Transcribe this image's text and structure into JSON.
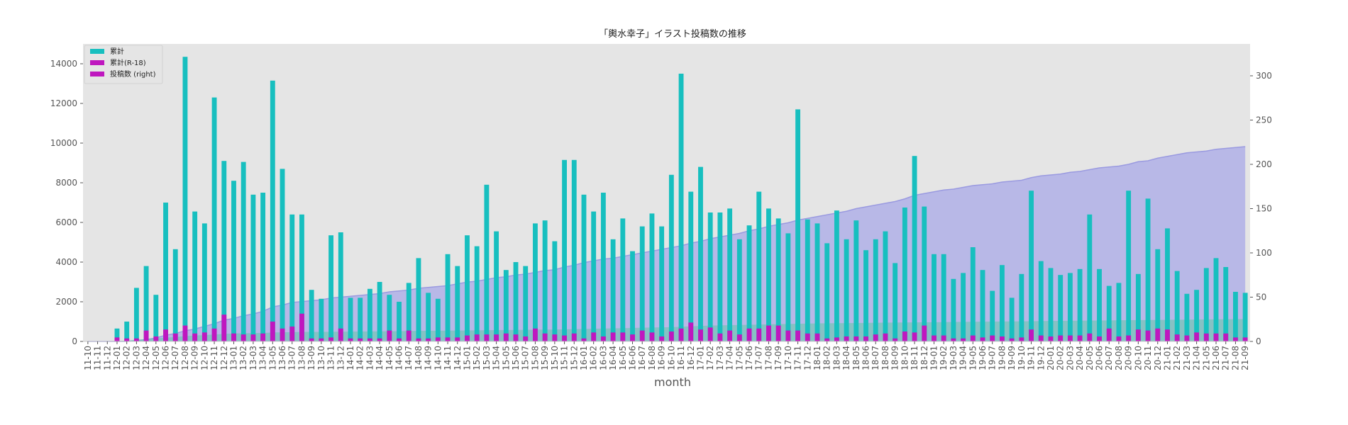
{
  "chart_data": {
    "type": "bar",
    "title": "「輿水幸子」イラスト投稿数の推移",
    "xlabel": "month",
    "ylabel": "",
    "categories": [
      "11-10",
      "11-11",
      "11-12",
      "12-01",
      "12-02",
      "12-03",
      "12-04",
      "12-05",
      "12-06",
      "12-07",
      "12-08",
      "12-09",
      "12-10",
      "12-11",
      "12-12",
      "13-01",
      "13-02",
      "13-03",
      "13-04",
      "13-05",
      "13-06",
      "13-07",
      "13-08",
      "13-09",
      "13-10",
      "13-11",
      "13-12",
      "14-01",
      "14-02",
      "14-03",
      "14-04",
      "14-05",
      "14-06",
      "14-07",
      "14-08",
      "14-09",
      "14-10",
      "14-11",
      "14-12",
      "15-01",
      "15-02",
      "15-03",
      "15-04",
      "15-05",
      "15-06",
      "15-07",
      "15-08",
      "15-09",
      "15-10",
      "15-11",
      "15-12",
      "16-01",
      "16-02",
      "16-03",
      "16-04",
      "16-05",
      "16-06",
      "16-07",
      "16-08",
      "16-09",
      "16-10",
      "16-11",
      "16-12",
      "17-01",
      "17-02",
      "17-03",
      "17-04",
      "17-05",
      "17-06",
      "17-07",
      "17-08",
      "17-09",
      "17-10",
      "17-11",
      "17-12",
      "18-01",
      "18-02",
      "18-03",
      "18-04",
      "18-05",
      "18-06",
      "18-07",
      "18-08",
      "18-09",
      "18-10",
      "18-11",
      "18-12",
      "19-01",
      "19-02",
      "19-03",
      "19-04",
      "19-05",
      "19-06",
      "19-07",
      "19-08",
      "19-09",
      "19-10",
      "19-11",
      "19-12",
      "20-01",
      "20-02",
      "20-03",
      "20-04",
      "20-05",
      "20-06",
      "20-07",
      "20-08",
      "20-09",
      "20-10",
      "20-11",
      "20-12",
      "21-01",
      "21-02",
      "21-03",
      "21-04",
      "21-05",
      "21-06",
      "21-07",
      "21-08",
      "21-09"
    ],
    "series": [
      {
        "name": "累計",
        "axis": "left",
        "kind": "bar",
        "color": "#17bfbf",
        "values": [
          0,
          0,
          0,
          650,
          1000,
          2700,
          3800,
          2350,
          7000,
          4650,
          14350,
          6550,
          5950,
          12300,
          9100,
          8100,
          9050,
          7400,
          7500,
          13150,
          8700,
          6400,
          6400,
          2600,
          2150,
          5350,
          5500,
          2200,
          2200,
          2650,
          3000,
          2350,
          2000,
          2950,
          4200,
          2450,
          2150,
          4400,
          3800,
          5350,
          4800,
          7900,
          5550,
          3600,
          4000,
          3800,
          5950,
          6100,
          5050,
          9150,
          9150,
          7400,
          6550,
          7500,
          5150,
          6200,
          4550,
          5800,
          6450,
          5800,
          8400,
          13500,
          7550,
          8800,
          6500,
          6500,
          6700,
          5150,
          5850,
          7550,
          6700,
          6200,
          5450,
          11700,
          6150,
          5950,
          4950,
          6600,
          5150,
          6100,
          4600,
          5150,
          5550,
          3950,
          6750,
          9350,
          6800,
          4400,
          4400,
          3150,
          3450,
          4750,
          3600,
          2550,
          3850,
          2200,
          3400,
          7600,
          4050,
          3700,
          3350,
          3450,
          3650,
          6400,
          3650,
          2800,
          2950,
          7600,
          3400,
          7200,
          4650,
          5700,
          3550,
          2400,
          2600,
          3700,
          4200,
          3750,
          2500,
          2450
        ]
      },
      {
        "name": "累計(R-18)",
        "axis": "left",
        "kind": "bar",
        "color": "#bf17bf",
        "values": [
          0,
          0,
          0,
          200,
          150,
          150,
          550,
          250,
          600,
          400,
          800,
          400,
          450,
          650,
          1350,
          400,
          350,
          350,
          400,
          1000,
          650,
          750,
          1400,
          150,
          150,
          200,
          650,
          150,
          150,
          150,
          150,
          550,
          150,
          550,
          150,
          150,
          200,
          200,
          200,
          300,
          350,
          350,
          350,
          400,
          350,
          250,
          650,
          400,
          350,
          300,
          400,
          150,
          450,
          250,
          450,
          450,
          350,
          550,
          450,
          250,
          500,
          650,
          950,
          600,
          700,
          400,
          550,
          350,
          650,
          650,
          800,
          800,
          550,
          550,
          400,
          400,
          150,
          200,
          250,
          250,
          250,
          350,
          400,
          150,
          500,
          450,
          800,
          300,
          300,
          150,
          150,
          300,
          200,
          300,
          250,
          150,
          200,
          600,
          300,
          250,
          300,
          300,
          300,
          400,
          250,
          650,
          250,
          300,
          600,
          550,
          650,
          600,
          350,
          300,
          450,
          400,
          400,
          400,
          200,
          200
        ]
      },
      {
        "name": "投稿数 (right)",
        "axis": "right",
        "kind": "area",
        "color": "#b0b0e8",
        "values": [
          0,
          0,
          0,
          0,
          0,
          1,
          2,
          4,
          7,
          9,
          12,
          14,
          17,
          20,
          24,
          26,
          29,
          31,
          34,
          39,
          41,
          44,
          45,
          46,
          47,
          49,
          50,
          51,
          52,
          53,
          54,
          56,
          57,
          58,
          60,
          61,
          62,
          63,
          65,
          67,
          68,
          70,
          72,
          73,
          75,
          76,
          78,
          80,
          81,
          84,
          86,
          89,
          91,
          93,
          94,
          96,
          98,
          100,
          102,
          104,
          106,
          108,
          111,
          113,
          116,
          118,
          120,
          122,
          125,
          127,
          130,
          132,
          134,
          137,
          139,
          141,
          143,
          145,
          147,
          150,
          152,
          154,
          156,
          158,
          161,
          165,
          167,
          169,
          171,
          172,
          174,
          176,
          177,
          178,
          180,
          181,
          182,
          185,
          187,
          188,
          189,
          191,
          192,
          194,
          196,
          197,
          198,
          200,
          203,
          204,
          207,
          209,
          211,
          213,
          214,
          215,
          217,
          218,
          219,
          220
        ]
      },
      {
        "name": "",
        "axis": "left",
        "kind": "area",
        "color": "#5fc8a8",
        "values": [
          0,
          0,
          0,
          20,
          40,
          80,
          120,
          150,
          190,
          220,
          270,
          300,
          320,
          350,
          380,
          400,
          410,
          420,
          430,
          450,
          460,
          470,
          480,
          480,
          480,
          485,
          490,
          495,
          500,
          505,
          510,
          515,
          520,
          525,
          530,
          535,
          540,
          545,
          550,
          555,
          560,
          565,
          570,
          575,
          580,
          585,
          590,
          595,
          600,
          610,
          620,
          630,
          640,
          650,
          660,
          670,
          680,
          690,
          700,
          710,
          720,
          740,
          760,
          780,
          800,
          810,
          820,
          830,
          840,
          850,
          860,
          870,
          880,
          890,
          900,
          910,
          915,
          920,
          925,
          930,
          935,
          940,
          945,
          950,
          955,
          960,
          965,
          970,
          975,
          980,
          985,
          990,
          995,
          1000,
          1005,
          1010,
          1015,
          1020,
          1025,
          1030,
          1035,
          1040,
          1045,
          1050,
          1055,
          1060,
          1065,
          1070,
          1075,
          1080,
          1085,
          1090,
          1095,
          1100,
          1105,
          1110,
          1115,
          1120,
          1125,
          1130
        ]
      }
    ],
    "ylim": [
      0,
      15000
    ],
    "y2lim": [
      0,
      336
    ],
    "yticks": [
      0,
      2000,
      4000,
      6000,
      8000,
      10000,
      12000,
      14000
    ],
    "y2ticks": [
      0,
      50,
      100,
      150,
      200,
      250,
      300
    ],
    "legend_position": "top-left",
    "grid": false,
    "colors": {
      "background": "#e5e5e5",
      "tick_text": "#555555"
    }
  }
}
